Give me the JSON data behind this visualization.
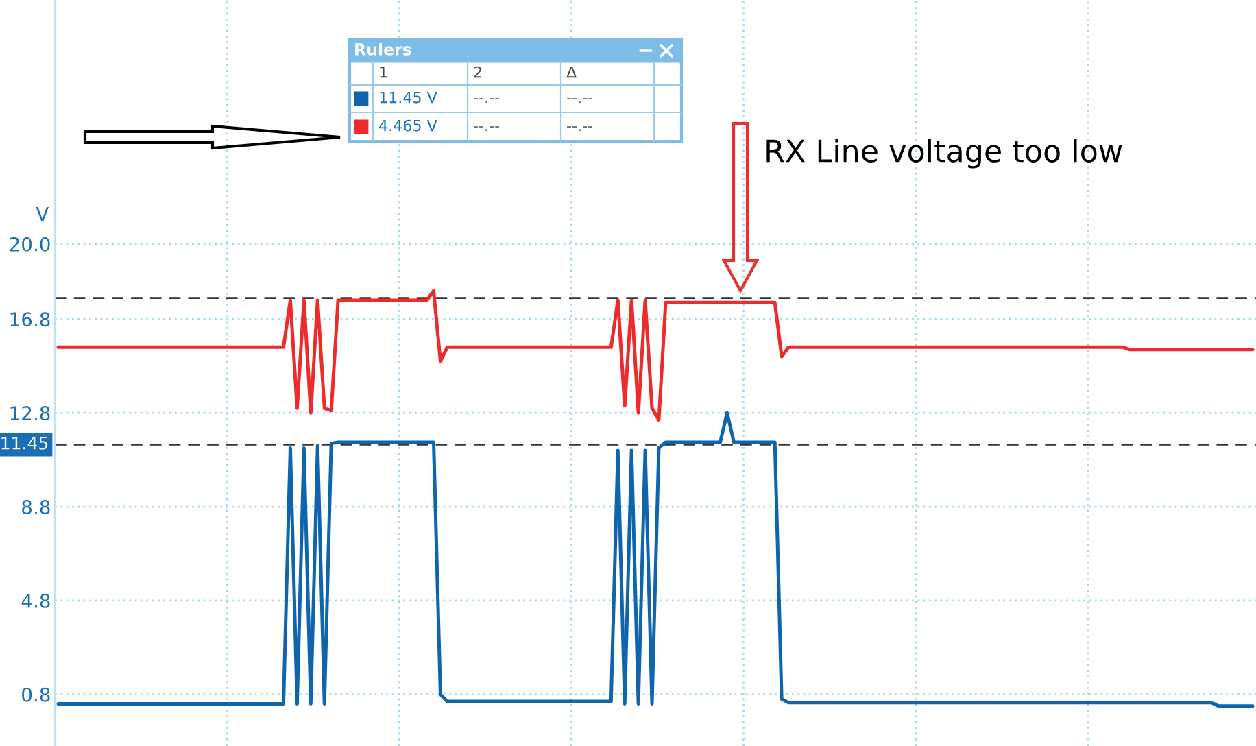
{
  "chart_data": {
    "type": "line",
    "ylabel": "V",
    "categories": [
      null,
      null,
      null,
      null,
      null,
      null,
      null,
      null,
      null,
      null,
      null,
      null,
      null,
      null,
      null,
      null,
      null,
      null,
      null,
      null,
      null,
      null,
      null,
      null,
      null,
      null,
      null,
      null,
      null,
      null,
      null,
      null,
      null,
      null,
      null,
      null,
      null,
      null,
      null,
      null,
      null,
      null,
      null,
      null,
      null,
      null,
      null,
      null,
      null,
      null,
      null,
      null,
      null,
      null,
      null,
      null,
      null,
      null,
      null,
      null,
      null,
      null,
      null,
      null,
      null,
      null,
      null,
      null,
      null,
      null,
      null,
      null,
      null,
      null,
      null,
      null,
      null,
      null,
      null,
      null,
      null,
      null,
      null,
      null,
      null,
      null,
      null,
      null,
      null,
      null,
      null,
      null,
      null,
      null,
      null,
      null,
      null,
      null,
      null,
      null,
      null,
      null,
      null,
      null,
      null,
      null,
      null,
      null,
      null,
      null,
      null,
      null,
      null,
      null,
      null,
      null,
      null,
      null,
      null,
      null,
      null,
      null,
      null,
      null,
      null,
      null,
      null,
      null,
      null,
      null,
      null,
      null,
      null,
      null,
      null,
      null,
      null,
      null,
      null,
      null,
      null,
      null,
      null,
      null,
      null,
      null,
      null,
      null,
      null,
      null,
      null,
      null,
      null,
      null,
      null,
      null,
      null,
      null,
      null,
      null,
      null,
      null,
      null,
      null,
      null,
      null,
      null,
      null,
      null,
      null,
      null,
      null,
      null,
      null,
      null,
      null
    ],
    "series": [
      {
        "color": "#0f65ad",
        "values": [
          0.4,
          0.4,
          0.4,
          0.4,
          0.4,
          0.4,
          0.4,
          0.4,
          0.4,
          0.4,
          0.4,
          0.4,
          0.4,
          0.4,
          0.4,
          0.4,
          0.4,
          0.4,
          0.4,
          0.4,
          0.4,
          0.4,
          0.4,
          0.4,
          0.4,
          0.4,
          0.4,
          0.4,
          0.4,
          0.4,
          0.4,
          0.4,
          0.4,
          0.4,
          11.3,
          0.4,
          11.3,
          0.4,
          11.4,
          0.4,
          11.5,
          11.55,
          11.55,
          11.55,
          11.55,
          11.55,
          11.55,
          11.55,
          11.55,
          11.55,
          11.55,
          11.55,
          11.55,
          11.55,
          11.55,
          11.55,
          0.8,
          0.5,
          0.5,
          0.5,
          0.5,
          0.5,
          0.5,
          0.5,
          0.5,
          0.5,
          0.5,
          0.5,
          0.5,
          0.5,
          0.5,
          0.5,
          0.5,
          0.5,
          0.5,
          0.5,
          0.5,
          0.5,
          0.5,
          0.5,
          0.5,
          0.5,
          11.2,
          0.4,
          11.2,
          0.4,
          11.2,
          0.4,
          11.3,
          11.55,
          11.55,
          11.55,
          11.55,
          11.55,
          11.55,
          11.55,
          11.55,
          11.55,
          12.8,
          11.55,
          11.55,
          11.55,
          11.55,
          11.55,
          11.55,
          11.55,
          0.6,
          0.45,
          0.45,
          0.45,
          0.45,
          0.45,
          0.45,
          0.45,
          0.45,
          0.45,
          0.45,
          0.45,
          0.45,
          0.45,
          0.45,
          0.45,
          0.45,
          0.45,
          0.45,
          0.45,
          0.45,
          0.45,
          0.45,
          0.45,
          0.45,
          0.45,
          0.45,
          0.45,
          0.45,
          0.45,
          0.45,
          0.45,
          0.45,
          0.45,
          0.45,
          0.45,
          0.45,
          0.45,
          0.45,
          0.45,
          0.45,
          0.45,
          0.45,
          0.45,
          0.45,
          0.45,
          0.45,
          0.45,
          0.45,
          0.45,
          0.45,
          0.45,
          0.45,
          0.45,
          0.45,
          0.45,
          0.45,
          0.45,
          0.45,
          0.45,
          0.45,
          0.45,
          0.45,
          0.45,
          0.3,
          0.3,
          0.3,
          0.3,
          0.3,
          0.3
        ]
      },
      {
        "color": "#ee2b2b",
        "values": [
          15.6,
          15.6,
          15.6,
          15.6,
          15.6,
          15.6,
          15.6,
          15.6,
          15.6,
          15.6,
          15.6,
          15.6,
          15.6,
          15.6,
          15.6,
          15.6,
          15.6,
          15.6,
          15.6,
          15.6,
          15.6,
          15.6,
          15.6,
          15.6,
          15.6,
          15.6,
          15.6,
          15.6,
          15.6,
          15.6,
          15.6,
          15.6,
          15.6,
          15.6,
          17.6,
          13.0,
          17.6,
          12.8,
          17.6,
          13.0,
          12.9,
          17.6,
          17.6,
          17.6,
          17.6,
          17.6,
          17.6,
          17.6,
          17.6,
          17.6,
          17.6,
          17.6,
          17.6,
          17.6,
          17.6,
          18.0,
          15.0,
          15.6,
          15.6,
          15.6,
          15.6,
          15.6,
          15.6,
          15.6,
          15.6,
          15.6,
          15.6,
          15.6,
          15.6,
          15.6,
          15.6,
          15.6,
          15.6,
          15.6,
          15.6,
          15.6,
          15.6,
          15.6,
          15.6,
          15.6,
          15.6,
          15.6,
          17.6,
          13.1,
          17.6,
          12.8,
          17.6,
          13.0,
          12.5,
          17.5,
          17.5,
          17.5,
          17.5,
          17.5,
          17.5,
          17.5,
          17.5,
          17.5,
          17.5,
          17.5,
          17.5,
          17.5,
          17.5,
          17.5,
          17.5,
          17.5,
          15.2,
          15.6,
          15.6,
          15.6,
          15.6,
          15.6,
          15.6,
          15.6,
          15.6,
          15.6,
          15.6,
          15.6,
          15.6,
          15.6,
          15.6,
          15.6,
          15.6,
          15.6,
          15.6,
          15.6,
          15.6,
          15.6,
          15.6,
          15.6,
          15.6,
          15.6,
          15.6,
          15.6,
          15.6,
          15.6,
          15.6,
          15.6,
          15.6,
          15.6,
          15.6,
          15.6,
          15.6,
          15.6,
          15.6,
          15.6,
          15.6,
          15.6,
          15.6,
          15.6,
          15.6,
          15.6,
          15.6,
          15.6,
          15.6,
          15.6,
          15.6,
          15.5,
          15.5,
          15.5,
          15.5,
          15.5,
          15.5,
          15.5,
          15.5,
          15.5,
          15.5,
          15.5,
          15.5,
          15.5,
          15.5,
          15.5,
          15.5,
          15.5,
          15.5,
          15.5
        ]
      }
    ],
    "ylim": [
      -1.4,
      30.4
    ],
    "yticks": [
      {
        "value": 0.8,
        "label": "0.8"
      },
      {
        "value": 4.8,
        "label": "4.8"
      },
      {
        "value": 8.8,
        "label": "8.8"
      },
      {
        "value": 12.8,
        "label": "12.8"
      },
      {
        "value": 16.8,
        "label": "16.8"
      },
      {
        "value": 20.0,
        "label": "20.0"
      }
    ],
    "grid": true,
    "ref_lines": [
      {
        "axis": "y",
        "value": 17.7,
        "color": "#333333",
        "line_style": "dashed"
      },
      {
        "axis": "y",
        "value": 11.45,
        "label": "11.45",
        "color": "#333333",
        "line_style": "dashed"
      }
    ],
    "annotations": [
      "RX Line voltage too low",
      "Rulers",
      "1",
      "2",
      "Δ",
      "11.45 V",
      "--.--",
      "--.--",
      "4.465 V",
      "--.--",
      "--.--"
    ]
  }
}
